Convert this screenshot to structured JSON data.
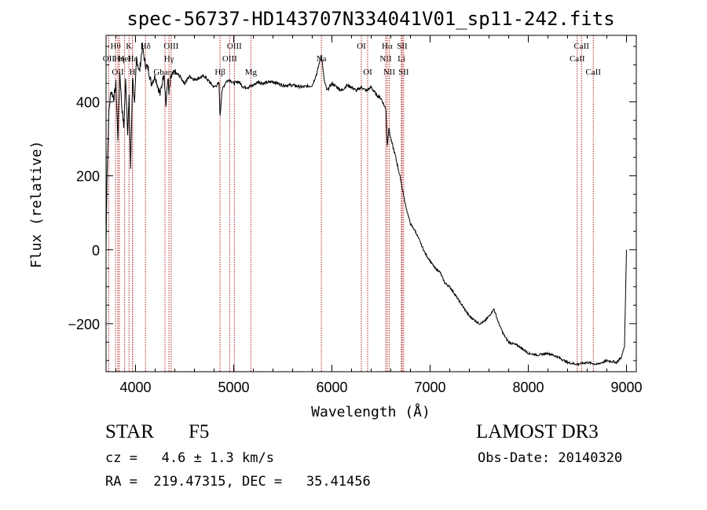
{
  "chart_data": {
    "type": "line",
    "title": "spec-56737-HD143707N334041V01_sp11-242.fits",
    "xlabel": "Wavelength (Å)",
    "ylabel": "Flux (relative)",
    "xlim": [
      3700,
      9100
    ],
    "ylim": [
      -330,
      580
    ],
    "xticks": [
      4000,
      5000,
      6000,
      7000,
      8000,
      9000
    ],
    "yticks": [
      -200,
      0,
      200,
      400
    ],
    "xtick_labels": [
      "4000",
      "5000",
      "6000",
      "7000",
      "8000",
      "9000"
    ],
    "ytick_labels": [
      "−200",
      "0",
      "200",
      "400"
    ],
    "line_color": "#000000",
    "marker_color": "#b22222",
    "series": [
      {
        "name": "flux",
        "x": [
          3700,
          3710,
          3730,
          3750,
          3780,
          3800,
          3820,
          3840,
          3860,
          3880,
          3900,
          3920,
          3935,
          3950,
          3970,
          3990,
          4010,
          4040,
          4070,
          4100,
          4130,
          4160,
          4200,
          4250,
          4290,
          4310,
          4330,
          4340,
          4360,
          4400,
          4450,
          4500,
          4550,
          4600,
          4650,
          4700,
          4750,
          4800,
          4850,
          4861,
          4880,
          4920,
          4960,
          5000,
          5050,
          5100,
          5150,
          5200,
          5250,
          5300,
          5400,
          5500,
          5600,
          5700,
          5800,
          5850,
          5893,
          5920,
          5950,
          6000,
          6050,
          6100,
          6150,
          6200,
          6250,
          6300,
          6350,
          6400,
          6450,
          6500,
          6550,
          6563,
          6580,
          6600,
          6650,
          6700,
          6750,
          6800,
          6850,
          6900,
          6950,
          7000,
          7050,
          7100,
          7150,
          7200,
          7250,
          7300,
          7350,
          7400,
          7450,
          7500,
          7550,
          7600,
          7650,
          7700,
          7750,
          7800,
          7850,
          7900,
          7950,
          8000,
          8100,
          8200,
          8300,
          8400,
          8500,
          8600,
          8700,
          8800,
          8900,
          8950,
          8980,
          9000
        ],
        "y": [
          0,
          210,
          380,
          430,
          410,
          450,
          300,
          480,
          390,
          330,
          460,
          320,
          410,
          220,
          470,
          390,
          520,
          480,
          550,
          500,
          490,
          450,
          470,
          420,
          480,
          390,
          470,
          420,
          465,
          480,
          470,
          450,
          470,
          460,
          465,
          470,
          455,
          440,
          450,
          360,
          430,
          455,
          460,
          450,
          455,
          440,
          440,
          445,
          455,
          450,
          455,
          445,
          445,
          440,
          445,
          480,
          530,
          460,
          430,
          450,
          440,
          430,
          445,
          440,
          430,
          440,
          430,
          440,
          420,
          410,
          380,
          280,
          330,
          300,
          250,
          190,
          120,
          70,
          50,
          20,
          -10,
          -30,
          -50,
          -60,
          -90,
          -100,
          -120,
          -140,
          -160,
          -180,
          -190,
          -200,
          -195,
          -180,
          -160,
          -200,
          -230,
          -250,
          -255,
          -260,
          -270,
          -280,
          -285,
          -280,
          -290,
          -305,
          -310,
          -305,
          -310,
          -300,
          -305,
          -290,
          -260,
          0
        ]
      }
    ],
    "markers": [
      {
        "name": "OII",
        "wave": 3727,
        "row": 2
      },
      {
        "name": "Hθ",
        "wave": 3797,
        "row": 1
      },
      {
        "name": "OII",
        "wave": 3820,
        "row": 3
      },
      {
        "name": "Hη",
        "wave": 3835,
        "row": 2
      },
      {
        "name": "HeI",
        "wave": 3889,
        "row": 2
      },
      {
        "name": "K",
        "wave": 3934,
        "row": 1
      },
      {
        "name": "H",
        "wave": 3969,
        "row": 3
      },
      {
        "name": "Hε",
        "wave": 3970,
        "row": 2
      },
      {
        "name": "Hδ",
        "wave": 4102,
        "row": 1
      },
      {
        "name": "Gband",
        "wave": 4300,
        "row": 3
      },
      {
        "name": "Hγ",
        "wave": 4341,
        "row": 2
      },
      {
        "name": "OIII",
        "wave": 4363,
        "row": 1
      },
      {
        "name": "Hβ",
        "wave": 4861,
        "row": 3
      },
      {
        "name": "OIII",
        "wave": 4959,
        "row": 2
      },
      {
        "name": "OIII",
        "wave": 5007,
        "row": 1
      },
      {
        "name": "Mg",
        "wave": 5175,
        "row": 3
      },
      {
        "name": "Na",
        "wave": 5893,
        "row": 2
      },
      {
        "name": "OI",
        "wave": 6300,
        "row": 1
      },
      {
        "name": "OI",
        "wave": 6364,
        "row": 3
      },
      {
        "name": "NII",
        "wave": 6548,
        "row": 2
      },
      {
        "name": "Hα",
        "wave": 6563,
        "row": 1
      },
      {
        "name": "NII",
        "wave": 6583,
        "row": 3
      },
      {
        "name": "Li",
        "wave": 6708,
        "row": 2
      },
      {
        "name": "SII",
        "wave": 6716,
        "row": 1
      },
      {
        "name": "SII",
        "wave": 6731,
        "row": 3
      },
      {
        "name": "CaII",
        "wave": 8498,
        "row": 2
      },
      {
        "name": "CaII",
        "wave": 8542,
        "row": 1
      },
      {
        "name": "CaII",
        "wave": 8662,
        "row": 3
      }
    ]
  },
  "info": {
    "object_class": "STAR",
    "subclass": "F5",
    "survey": "LAMOST DR3",
    "redshift": "cz =   4.6 ± 1.3 km/s",
    "obs_date": "Obs-Date: 20140320",
    "coords": "RA =  219.47315, DEC =   35.41456"
  }
}
